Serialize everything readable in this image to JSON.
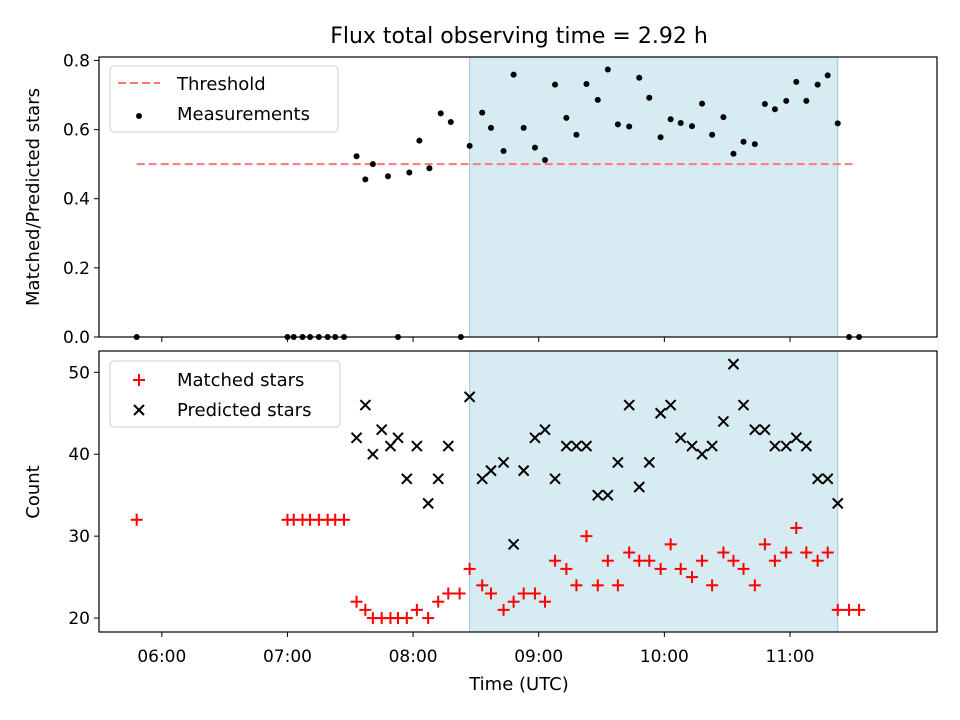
{
  "chart_data": {
    "title": "Flux total observing time = 2.92 h",
    "xlabel": "Time (UTC)",
    "x_ticks": [
      "06:00",
      "07:00",
      "08:00",
      "09:00",
      "10:00",
      "11:00"
    ],
    "x_units": "hours UTC",
    "xlim": [
      5.5,
      12.17
    ],
    "shaded_interval": [
      8.45,
      11.38
    ],
    "shade_color": "#add8e6",
    "panels": [
      {
        "type": "scatter",
        "ylabel": "Matched/Predicted stars",
        "ylim": [
          0,
          0.81
        ],
        "y_ticks": [
          0.0,
          0.2,
          0.4,
          0.6,
          0.8
        ],
        "legend_position": "top-left",
        "threshold": {
          "name": "Threshold",
          "value": 0.5,
          "x_range": [
            5.8,
            11.52
          ],
          "color": "#ff7777",
          "style": "dashed"
        },
        "series": [
          {
            "name": "Measurements",
            "color": "#000000",
            "marker": "dot",
            "x": [
              5.8,
              7.0,
              7.05,
              7.12,
              7.18,
              7.25,
              7.32,
              7.38,
              7.45,
              7.55,
              7.62,
              7.68,
              7.8,
              7.88,
              7.97,
              8.05,
              8.13,
              8.22,
              8.3,
              8.38,
              8.45,
              8.55,
              8.62,
              8.72,
              8.8,
              8.88,
              8.97,
              9.05,
              9.13,
              9.22,
              9.3,
              9.38,
              9.47,
              9.55,
              9.63,
              9.72,
              9.8,
              9.88,
              9.97,
              10.05,
              10.13,
              10.22,
              10.3,
              10.38,
              10.47,
              10.55,
              10.63,
              10.72,
              10.8,
              10.88,
              10.97,
              11.05,
              11.13,
              11.22,
              11.3,
              11.38,
              11.47,
              11.55
            ],
            "y": [
              0.0,
              0.0,
              0.0,
              0.0,
              0.0,
              0.0,
              0.0,
              0.0,
              0.0,
              0.523,
              0.456,
              0.5,
              0.465,
              0.0,
              0.476,
              0.568,
              0.488,
              0.647,
              0.622,
              0.0,
              0.553,
              0.649,
              0.605,
              0.538,
              0.759,
              0.605,
              0.548,
              0.512,
              0.73,
              0.634,
              0.585,
              0.732,
              0.686,
              0.774,
              0.615,
              0.609,
              0.75,
              0.692,
              0.578,
              0.63,
              0.619,
              0.61,
              0.675,
              0.585,
              0.636,
              0.53,
              0.565,
              0.558,
              0.674,
              0.659,
              0.683,
              0.738,
              0.683,
              0.73,
              0.757,
              0.618,
              0.0,
              0.0
            ]
          }
        ]
      },
      {
        "type": "scatter",
        "ylabel": "Count",
        "ylim": [
          18.3,
          52.6
        ],
        "y_ticks": [
          20,
          30,
          40,
          50
        ],
        "legend_position": "top-left",
        "series": [
          {
            "name": "Matched stars",
            "color": "#ff0000",
            "marker": "plus",
            "x": [
              5.8,
              7.0,
              7.05,
              7.12,
              7.18,
              7.25,
              7.32,
              7.38,
              7.45,
              7.55,
              7.62,
              7.68,
              7.75,
              7.82,
              7.88,
              7.95,
              8.03,
              8.12,
              8.2,
              8.28,
              8.37,
              8.45,
              8.55,
              8.62,
              8.72,
              8.8,
              8.88,
              8.97,
              9.05,
              9.13,
              9.22,
              9.3,
              9.38,
              9.47,
              9.55,
              9.63,
              9.72,
              9.8,
              9.88,
              9.97,
              10.05,
              10.13,
              10.22,
              10.3,
              10.38,
              10.47,
              10.55,
              10.63,
              10.72,
              10.8,
              10.88,
              10.97,
              11.05,
              11.13,
              11.22,
              11.3,
              11.38,
              11.47,
              11.55
            ],
            "y": [
              32,
              32,
              32,
              32,
              32,
              32,
              32,
              32,
              32,
              22,
              21,
              20,
              20,
              20,
              20,
              20,
              21,
              20,
              22,
              23,
              23,
              26,
              24,
              23,
              21,
              22,
              23,
              23,
              22,
              27,
              26,
              24,
              30,
              24,
              27,
              24,
              28,
              27,
              27,
              26,
              29,
              26,
              25,
              27,
              24,
              28,
              27,
              26,
              24,
              29,
              27,
              28,
              31,
              28,
              27,
              28,
              21,
              21,
              21
            ]
          },
          {
            "name": "Predicted stars",
            "color": "#000000",
            "marker": "x",
            "x": [
              7.55,
              7.62,
              7.68,
              7.75,
              7.82,
              7.88,
              7.95,
              8.03,
              8.12,
              8.2,
              8.28,
              8.45,
              8.55,
              8.62,
              8.72,
              8.8,
              8.88,
              8.97,
              9.05,
              9.13,
              9.22,
              9.3,
              9.38,
              9.47,
              9.55,
              9.63,
              9.72,
              9.8,
              9.88,
              9.97,
              10.05,
              10.13,
              10.22,
              10.3,
              10.38,
              10.47,
              10.55,
              10.63,
              10.72,
              10.8,
              10.88,
              10.97,
              11.05,
              11.13,
              11.22,
              11.3,
              11.38
            ],
            "y": [
              42,
              46,
              40,
              43,
              41,
              42,
              37,
              41,
              34,
              37,
              41,
              47,
              37,
              38,
              39,
              29,
              38,
              42,
              43,
              37,
              41,
              41,
              41,
              35,
              35,
              39,
              46,
              36,
              39,
              45,
              46,
              42,
              41,
              40,
              41,
              44,
              51,
              46,
              43,
              43,
              41,
              41,
              42,
              41,
              37,
              37,
              34
            ]
          }
        ]
      }
    ]
  }
}
